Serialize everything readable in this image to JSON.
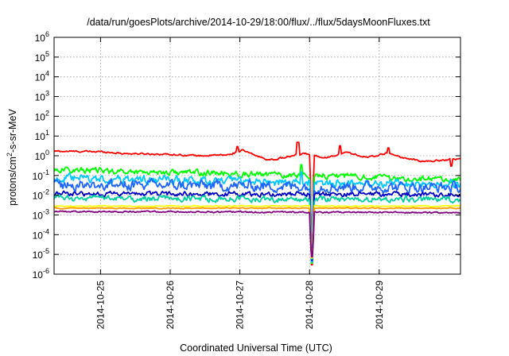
{
  "chart_data": {
    "type": "line",
    "title": "/data/run/goesPlots/archive/2014-10-29/18:00/flux/../flux/5daysMoonFluxes.txt",
    "xlabel": "Coordinated Universal Time (UTC)",
    "ylabel": "protons/cm²-s-sr-MeV",
    "y_scale": "log",
    "ylim_exponents": [
      -6,
      6
    ],
    "y_tick_exponents": [
      -6,
      -5,
      -4,
      -3,
      -2,
      -1,
      0,
      1,
      2,
      3,
      4,
      5,
      6
    ],
    "y_tick_base": "10",
    "xlim": [
      "2014-10-24 08:00",
      "2014-10-29 18:00"
    ],
    "x_ticks": [
      "2014-10-25",
      "2014-10-26",
      "2014-10-27",
      "2014-10-28",
      "2014-10-29"
    ],
    "x_tick_positions_days": [
      1,
      2,
      3,
      4,
      5
    ],
    "x_start_hour": 8,
    "grid": true,
    "legend": "none",
    "dip_day": 3.7,
    "series": [
      {
        "color": "#ff0000",
        "base": 1.25,
        "noise": 0.07,
        "trend": [
          [
            0,
            1.7
          ],
          [
            0.7,
            1.6
          ],
          [
            1.0,
            1.3
          ],
          [
            1.6,
            1.2
          ],
          [
            2.1,
            1.0
          ],
          [
            2.5,
            1.1
          ],
          [
            2.7,
            1.9
          ],
          [
            2.9,
            1.0
          ],
          [
            3.1,
            0.6
          ],
          [
            3.3,
            0.8
          ],
          [
            3.6,
            1.3
          ],
          [
            3.9,
            0.8
          ],
          [
            4.2,
            1.5
          ],
          [
            4.5,
            0.8
          ],
          [
            4.8,
            1.4
          ],
          [
            5.0,
            0.8
          ],
          [
            5.3,
            0.5
          ],
          [
            5.8,
            0.7
          ]
        ],
        "spikes": [
          [
            2.63,
            2.9
          ],
          [
            3.5,
            4.8
          ],
          [
            4.1,
            3.2
          ],
          [
            4.8,
            2.5
          ],
          [
            5.7,
            0.3
          ]
        ]
      },
      {
        "color": "#00ff00",
        "base": 0.12,
        "noise": 0.25,
        "trend": [
          [
            0,
            0.2
          ],
          [
            1.0,
            0.16
          ],
          [
            2.0,
            0.14
          ],
          [
            3.0,
            0.11
          ],
          [
            4.0,
            0.1
          ],
          [
            5.0,
            0.07
          ],
          [
            5.8,
            0.06
          ]
        ],
        "spikes": [
          [
            3.55,
            0.35
          ],
          [
            3.7,
            0.22
          ]
        ]
      },
      {
        "color": "#00c8ff",
        "base": 0.05,
        "noise": 0.35,
        "trend": [
          [
            0,
            0.07
          ],
          [
            2.5,
            0.05
          ],
          [
            5.8,
            0.035
          ]
        ],
        "spikes": [
          [
            3.55,
            0.15
          ]
        ]
      },
      {
        "color": "#1e64ff",
        "base": 0.03,
        "noise": 0.45,
        "trend": [
          [
            0,
            0.035
          ],
          [
            2.5,
            0.03
          ],
          [
            5.8,
            0.025
          ]
        ],
        "spikes": []
      },
      {
        "color": "#0000c8",
        "base": 0.012,
        "noise": 0.2,
        "trend": [
          [
            0,
            0.012
          ],
          [
            5.8,
            0.011
          ]
        ],
        "spikes": []
      },
      {
        "color": "#00d0a0",
        "base": 0.006,
        "noise": 0.25,
        "trend": [
          [
            0,
            0.007
          ],
          [
            5.8,
            0.006
          ]
        ],
        "spikes": []
      },
      {
        "color": "#ffff00",
        "base": 0.0028,
        "noise": 0.04,
        "trend": [
          [
            0,
            0.0028
          ],
          [
            5.8,
            0.0028
          ]
        ],
        "spikes": []
      },
      {
        "color": "#ff9900",
        "base": 0.0022,
        "noise": 0.04,
        "trend": [
          [
            0,
            0.0022
          ],
          [
            5.8,
            0.0022
          ]
        ],
        "spikes": []
      },
      {
        "color": "#800080",
        "base": 0.0013,
        "noise": 0.06,
        "trend": [
          [
            0,
            0.0015
          ],
          [
            5.8,
            0.0013
          ]
        ],
        "spikes": []
      }
    ]
  }
}
